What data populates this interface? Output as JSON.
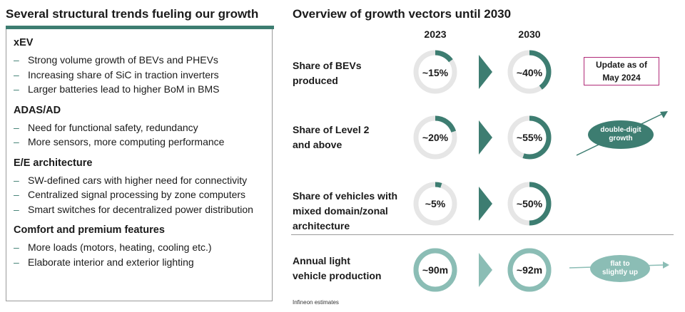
{
  "left": {
    "title": "Several structural trends fueling our growth",
    "sections": [
      {
        "heading": "xEV",
        "items": [
          "Strong volume growth of BEVs and PHEVs",
          "Increasing share of SiC in traction inverters",
          "Larger batteries lead to higher BoM in BMS"
        ]
      },
      {
        "heading": "ADAS/AD",
        "items": [
          "Need for functional safety, redundancy",
          "More sensors, more computing performance"
        ]
      },
      {
        "heading": "E/E architecture",
        "items": [
          "SW-defined cars with higher need for connectivity",
          "Centralized signal processing by zone computers",
          "Smart switches for decentralized power distribution"
        ]
      },
      {
        "heading": "Comfort and premium features",
        "items": [
          "More loads (motors, heating, cooling etc.)",
          "Elaborate interior and exterior lighting"
        ]
      }
    ]
  },
  "right": {
    "title": "Overview of growth vectors until 2030",
    "year_start": "2023",
    "year_end": "2030",
    "rows": [
      {
        "label_lines": [
          "Share of BEVs",
          "produced"
        ],
        "start_label": "~15%",
        "end_label": "~40%",
        "start_fraction": 0.15,
        "end_fraction": 0.4
      },
      {
        "label_lines": [
          "Share of Level 2",
          "and above"
        ],
        "start_label": "~20%",
        "end_label": "~55%",
        "start_fraction": 0.2,
        "end_fraction": 0.55
      },
      {
        "label_lines": [
          "Share of vehicles with",
          "mixed domain/zonal",
          "architecture"
        ],
        "start_label": "~5%",
        "end_label": "~50%",
        "start_fraction": 0.05,
        "end_fraction": 0.5
      },
      {
        "label_lines": [
          "Annual light",
          "vehicle production"
        ],
        "start_label": "~90m",
        "end_label": "~92m",
        "start_fraction": 1.0,
        "end_fraction": 1.0
      }
    ],
    "update_note_lines": [
      "Update as of",
      "May 2024"
    ],
    "growth_pill_lines": [
      "double-digit",
      "growth"
    ],
    "flat_pill_lines": [
      "flat to",
      "slightly up"
    ],
    "footnote": "Infineon estimates"
  },
  "colors": {
    "accent": "#3d7d71",
    "accent_light": "#8bbdb5",
    "track": "#e6e6e6",
    "track_light": "#c3ddd8",
    "update_border": "#b02a78"
  }
}
